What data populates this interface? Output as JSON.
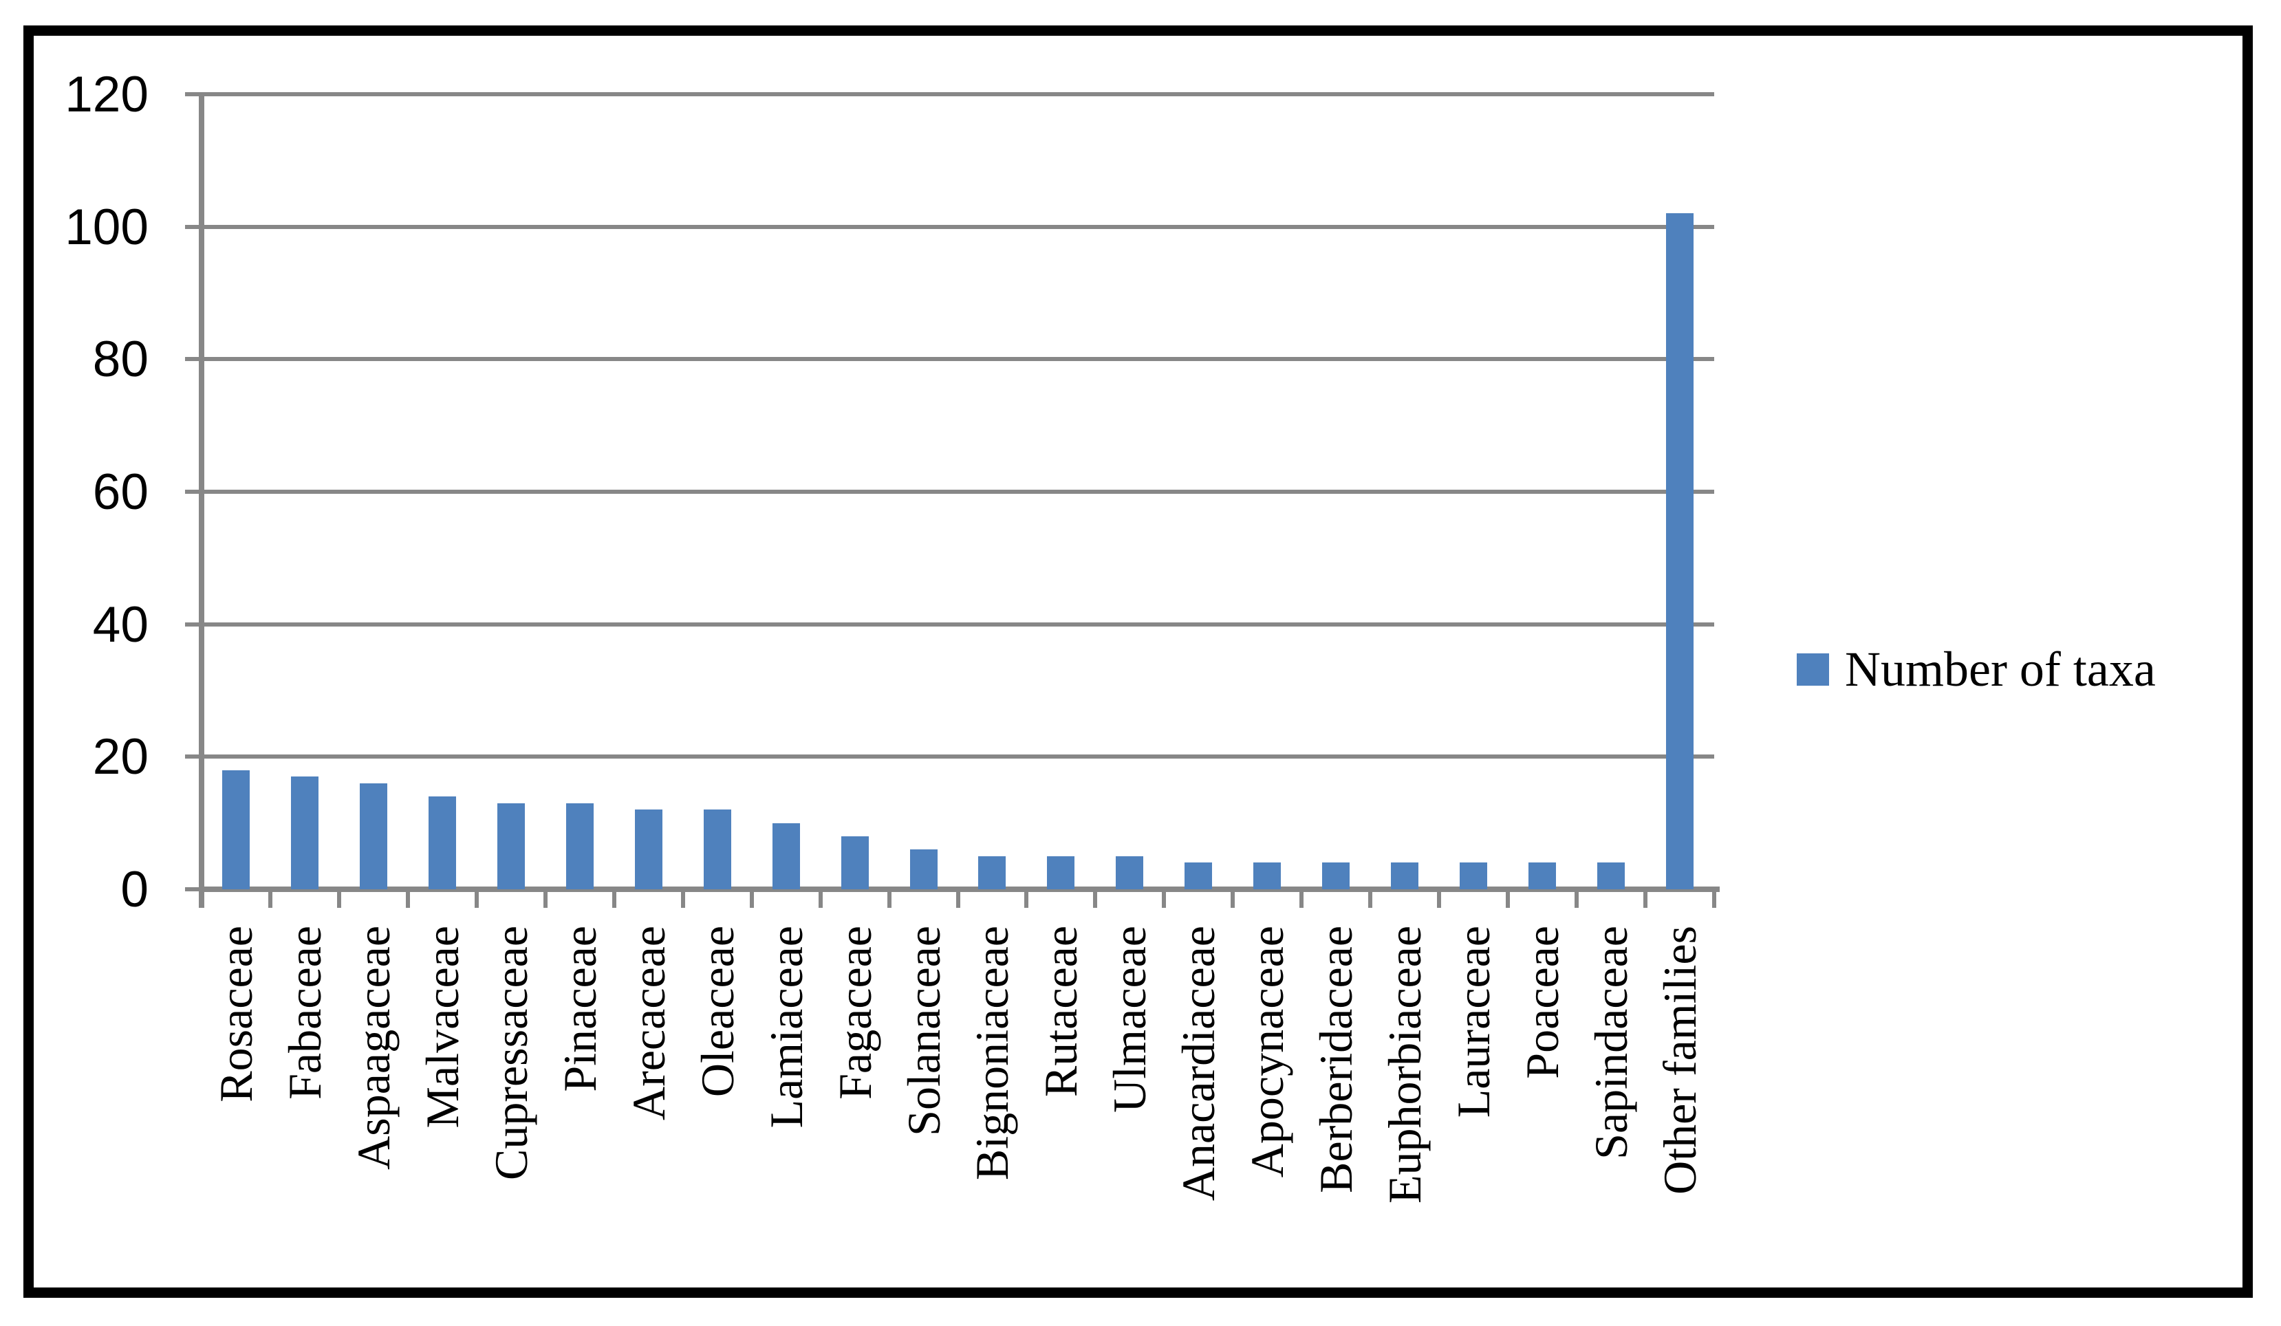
{
  "figure": {
    "background_color": "#ffffff",
    "border_color": "#000000",
    "gridline_color": "#878787",
    "axis_color": "#878787",
    "text_color": "#000000"
  },
  "chart_data": {
    "type": "bar",
    "title": "",
    "xlabel": "",
    "ylabel": "",
    "categories": [
      "Rosaceae",
      "Fabaceae",
      "Aspaagaceae",
      "Malvaceae",
      "Cupressaceae",
      "Pinaceae",
      "Arecaceae",
      "Oleaceae",
      "Lamiaceae",
      "Fagaceae",
      "Solanaceae",
      "Bignoniaceae",
      "Rutaceae",
      "Ulmaceae",
      "Anacardiaceae",
      "Apocynaceae",
      "Berberidaceae",
      "Euphorbiaceae",
      "Lauraceae",
      "Poaceae",
      "Sapindaceae",
      "Other families"
    ],
    "values": [
      18,
      17,
      16,
      14,
      13,
      13,
      12,
      12,
      10,
      8,
      6,
      5,
      5,
      5,
      4,
      4,
      4,
      4,
      4,
      4,
      4,
      102
    ],
    "series": [
      {
        "name": "Number of taxa",
        "values": [
          18,
          17,
          16,
          14,
          13,
          13,
          12,
          12,
          10,
          8,
          6,
          5,
          5,
          5,
          4,
          4,
          4,
          4,
          4,
          4,
          4,
          102
        ]
      }
    ],
    "ylim": [
      0,
      120
    ],
    "yticks": [
      0,
      20,
      40,
      60,
      80,
      100,
      120
    ],
    "ytick_labels": [
      "0",
      "20",
      "40",
      "60",
      "80",
      "100",
      "120"
    ],
    "grid": "horizontal",
    "bar_color": "#4F81BD",
    "legend_position": "right"
  },
  "legend": {
    "label": "Number of taxa",
    "swatch_color": "#4F81BD"
  }
}
